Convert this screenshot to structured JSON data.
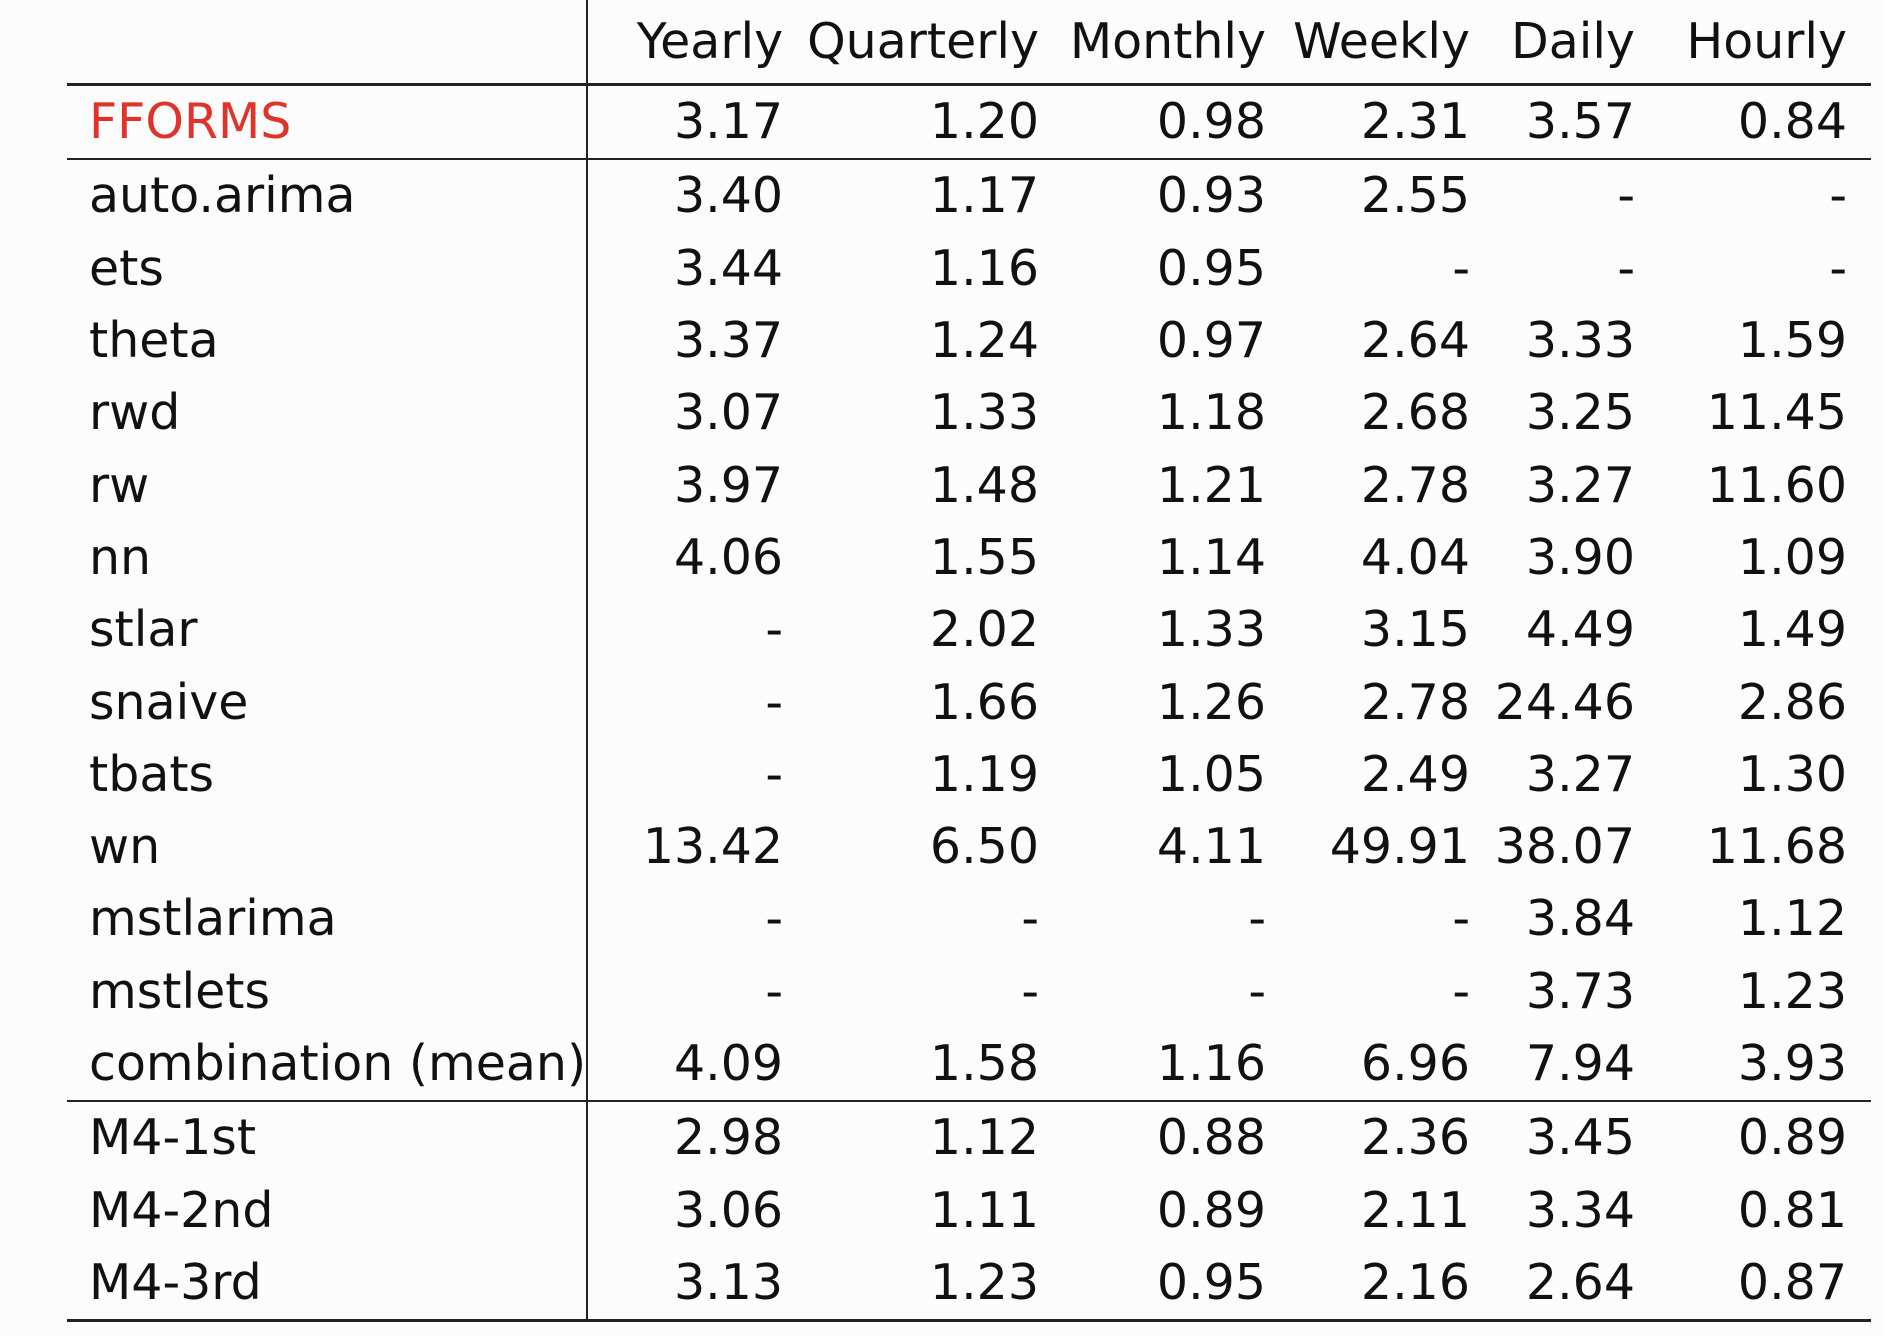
{
  "accent_color": "#e0332b",
  "columns": [
    "Yearly",
    "Quarterly",
    "Monthly",
    "Weekly",
    "Daily",
    "Hourly"
  ],
  "highlight": {
    "method": "FFORMS",
    "values": [
      "3.17",
      "1.20",
      "0.98",
      "2.31",
      "3.57",
      "0.84"
    ]
  },
  "benchmarks": [
    {
      "method": "auto.arima",
      "values": [
        "3.40",
        "1.17",
        "0.93",
        "2.55",
        "-",
        "-"
      ]
    },
    {
      "method": "ets",
      "values": [
        "3.44",
        "1.16",
        "0.95",
        "-",
        "-",
        "-"
      ]
    },
    {
      "method": "theta",
      "values": [
        "3.37",
        "1.24",
        "0.97",
        "2.64",
        "3.33",
        "1.59"
      ]
    },
    {
      "method": "rwd",
      "values": [
        "3.07",
        "1.33",
        "1.18",
        "2.68",
        "3.25",
        "11.45"
      ]
    },
    {
      "method": "rw",
      "values": [
        "3.97",
        "1.48",
        "1.21",
        "2.78",
        "3.27",
        "11.60"
      ]
    },
    {
      "method": "nn",
      "values": [
        "4.06",
        "1.55",
        "1.14",
        "4.04",
        "3.90",
        "1.09"
      ]
    },
    {
      "method": "stlar",
      "values": [
        "-",
        "2.02",
        "1.33",
        "3.15",
        "4.49",
        "1.49"
      ]
    },
    {
      "method": "snaive",
      "values": [
        "-",
        "1.66",
        "1.26",
        "2.78",
        "24.46",
        "2.86"
      ]
    },
    {
      "method": "tbats",
      "values": [
        "-",
        "1.19",
        "1.05",
        "2.49",
        "3.27",
        "1.30"
      ]
    },
    {
      "method": "wn",
      "values": [
        "13.42",
        "6.50",
        "4.11",
        "49.91",
        "38.07",
        "11.68"
      ]
    },
    {
      "method": "mstlarima",
      "values": [
        "-",
        "-",
        "-",
        "-",
        "3.84",
        "1.12"
      ]
    },
    {
      "method": "mstlets",
      "values": [
        "-",
        "-",
        "-",
        "-",
        "3.73",
        "1.23"
      ]
    },
    {
      "method": "combination (mean)",
      "values": [
        "4.09",
        "1.58",
        "1.16",
        "6.96",
        "7.94",
        "3.93"
      ]
    }
  ],
  "m4": [
    {
      "method": "M4-1st",
      "values": [
        "2.98",
        "1.12",
        "0.88",
        "2.36",
        "3.45",
        "0.89"
      ]
    },
    {
      "method": "M4-2nd",
      "values": [
        "3.06",
        "1.11",
        "0.89",
        "2.11",
        "3.34",
        "0.81"
      ]
    },
    {
      "method": "M4-3rd",
      "values": [
        "3.13",
        "1.23",
        "0.95",
        "2.16",
        "2.64",
        "0.87"
      ]
    }
  ]
}
